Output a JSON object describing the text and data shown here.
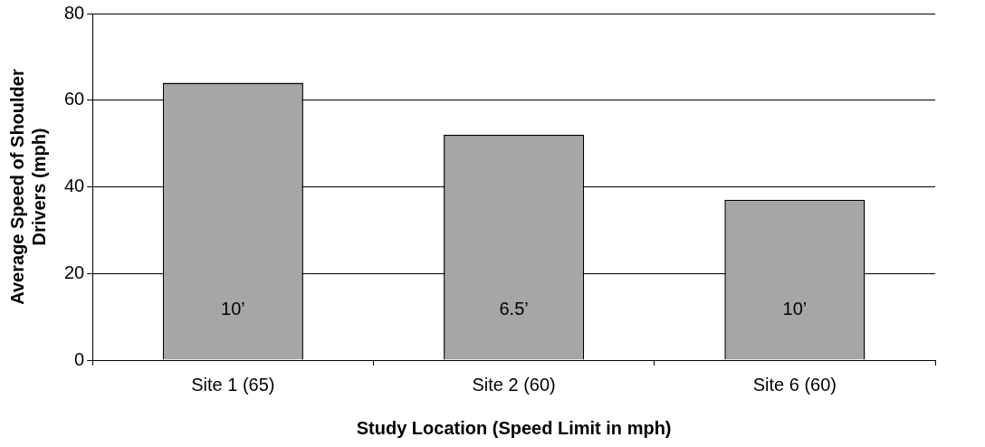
{
  "chart_data": {
    "type": "bar",
    "categories": [
      "Site 1 (65)",
      "Site 2 (60)",
      "Site 6 (60)"
    ],
    "values": [
      64,
      52,
      37
    ],
    "color": "#a6a6a6",
    "xlabel": "Study Location (Speed Limit in mph)",
    "ylabel": "Average Speed of Shoulder Drivers (mph)",
    "ylim": [
      0,
      80
    ],
    "yticks": [
      0,
      20,
      40,
      60,
      80
    ],
    "grid": "y",
    "legend": false,
    "annotations": [
      "10’",
      "6.5’",
      "10’"
    ]
  }
}
